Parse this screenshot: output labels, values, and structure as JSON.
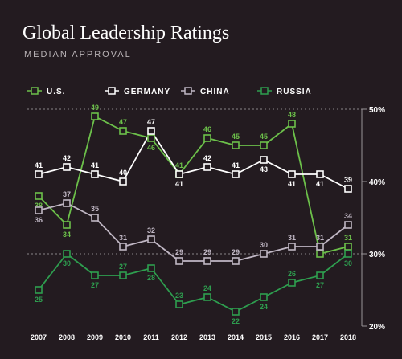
{
  "title": "Global Leadership Ratings",
  "subtitle": "MEDIAN APPROVAL",
  "chart_data": {
    "type": "line",
    "title": "Global Leadership Ratings",
    "subtitle": "MEDIAN APPROVAL",
    "x": [
      "2007",
      "2008",
      "2009",
      "2010",
      "2011",
      "2012",
      "2013",
      "2014",
      "2015",
      "2016",
      "2017",
      "2018"
    ],
    "ylim": [
      20,
      50
    ],
    "yticks": [
      20,
      30,
      40,
      50
    ],
    "ytick_labels": [
      "20%",
      "30%",
      "40%",
      "50%"
    ],
    "y_axis_position": "right",
    "grid": "dotted lines at 30% and 50%",
    "legend_placement": "top",
    "series": [
      {
        "name": "U.S.",
        "color": "#6cc04a",
        "values": [
          38,
          34,
          49,
          47,
          46,
          41,
          46,
          45,
          45,
          48,
          30,
          31
        ]
      },
      {
        "name": "GERMANY",
        "color": "#ffffff",
        "values": [
          41,
          42,
          41,
          40,
          47,
          41,
          42,
          41,
          43,
          41,
          41,
          39
        ]
      },
      {
        "name": "CHINA",
        "color": "#c0b7c4",
        "values": [
          36,
          37,
          35,
          31,
          32,
          29,
          29,
          29,
          30,
          31,
          31,
          34
        ]
      },
      {
        "name": "RUSSIA",
        "color": "#2e9e4f",
        "values": [
          25,
          30,
          27,
          27,
          28,
          23,
          24,
          22,
          24,
          26,
          27,
          30
        ]
      }
    ]
  }
}
